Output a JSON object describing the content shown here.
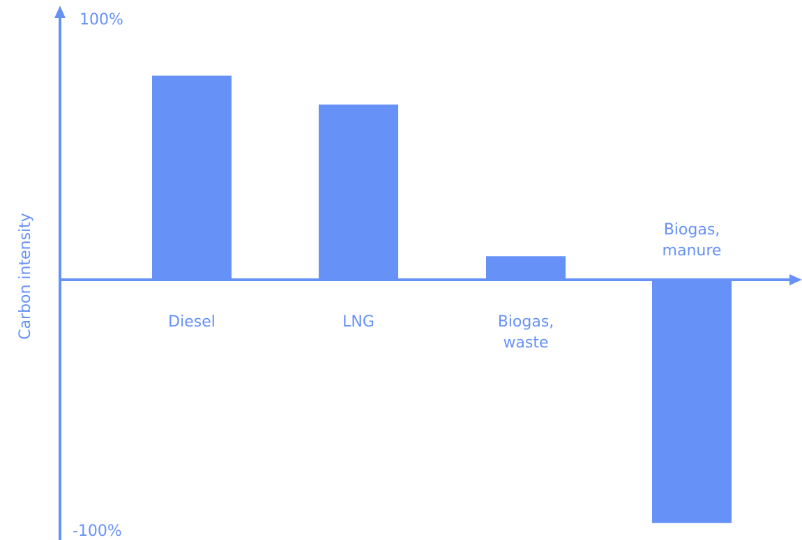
{
  "chart_data": {
    "type": "bar",
    "title": "",
    "xlabel": "",
    "ylabel": "Carbon intensity",
    "ylim": [
      -100,
      100
    ],
    "ytick_top": "100%",
    "ytick_bottom": "-100%",
    "grid": false,
    "categories": [
      "Diesel",
      "LNG",
      "Biogas, waste",
      "Biogas, manure"
    ],
    "category_lines": [
      [
        "Diesel"
      ],
      [
        "LNG"
      ],
      [
        "Biogas,",
        "waste"
      ],
      [
        "Biogas,",
        "manure"
      ]
    ],
    "values": [
      78,
      67,
      9,
      -94
    ]
  },
  "colors": {
    "bar": "#6692f8",
    "axis": "#6692f8",
    "text": "#6692f8"
  }
}
